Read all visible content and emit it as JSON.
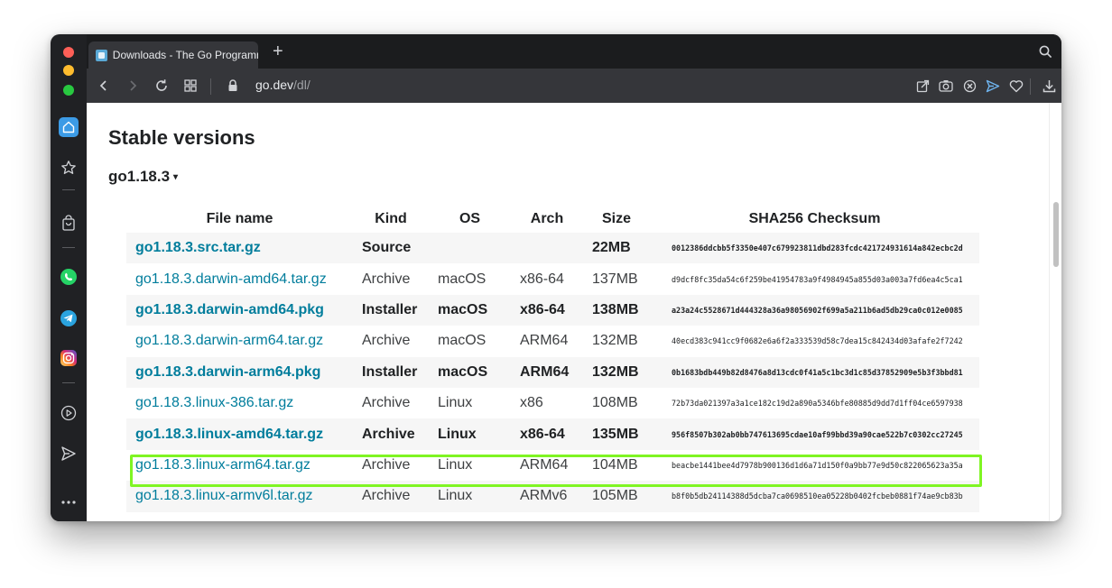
{
  "browser": {
    "tab_title": "Downloads - The Go Programm",
    "new_tab_symbol": "+",
    "url_host": "go.dev",
    "url_path": "/dl/"
  },
  "page": {
    "stable_heading": "Stable versions",
    "version_heading": "go1.18.3",
    "version_caret": "▾"
  },
  "table": {
    "headers": [
      "File name",
      "Kind",
      "OS",
      "Arch",
      "Size",
      "SHA256 Checksum"
    ],
    "rows": [
      {
        "file": "go1.18.3.src.tar.gz",
        "kind": "Source",
        "os": "",
        "arch": "",
        "size": "22MB",
        "sha": "0012386ddcbb5f3350e407c679923811dbd283fcdc421724931614a842ecbc2d"
      },
      {
        "file": "go1.18.3.darwin-amd64.tar.gz",
        "kind": "Archive",
        "os": "macOS",
        "arch": "x86-64",
        "size": "137MB",
        "sha": "d9dcf8fc35da54c6f259be41954783a9f4984945a855d03a003a7fd6ea4c5ca1"
      },
      {
        "file": "go1.18.3.darwin-amd64.pkg",
        "kind": "Installer",
        "os": "macOS",
        "arch": "x86-64",
        "size": "138MB",
        "sha": "a23a24c5528671d444328a36a98056902f699a5a211b6ad5db29ca0c012e0085"
      },
      {
        "file": "go1.18.3.darwin-arm64.tar.gz",
        "kind": "Archive",
        "os": "macOS",
        "arch": "ARM64",
        "size": "132MB",
        "sha": "40ecd383c941cc9f0682e6a6f2a333539d58c7dea15c842434d03afafe2f7242"
      },
      {
        "file": "go1.18.3.darwin-arm64.pkg",
        "kind": "Installer",
        "os": "macOS",
        "arch": "ARM64",
        "size": "132MB",
        "sha": "0b1683bdb449b82d8476a8d13cdc0f41a5c1bc3d1c85d37852909e5b3f3bbd81"
      },
      {
        "file": "go1.18.3.linux-386.tar.gz",
        "kind": "Archive",
        "os": "Linux",
        "arch": "x86",
        "size": "108MB",
        "sha": "72b73da021397a3a1ce182c19d2a890a5346bfe80885d9dd7d1ff04ce6597938"
      },
      {
        "file": "go1.18.3.linux-amd64.tar.gz",
        "kind": "Archive",
        "os": "Linux",
        "arch": "x86-64",
        "size": "135MB",
        "sha": "956f8507b302ab0bb747613695cdae10af99bbd39a90cae522b7c0302cc27245"
      },
      {
        "file": "go1.18.3.linux-arm64.tar.gz",
        "kind": "Archive",
        "os": "Linux",
        "arch": "ARM64",
        "size": "104MB",
        "sha": "beacbe1441bee4d7978b900136d1d6a71d150f0a9bb77e9d50c822065623a35a"
      },
      {
        "file": "go1.18.3.linux-armv6l.tar.gz",
        "kind": "Archive",
        "os": "Linux",
        "arch": "ARMv6",
        "size": "105MB",
        "sha": "b8f0b5db24114388d5dcba7ca0698510ea05228b0402fcbeb0881f74ae9cb83b"
      }
    ],
    "featured_rows": [
      0,
      2,
      4,
      6
    ],
    "highlighted_row": 6
  },
  "colors": {
    "link": "#007d9c",
    "highlight": "#7ff523",
    "window_chrome": "#202124",
    "toolbar": "#35363a"
  },
  "icons": {
    "sidebar": [
      "speed-dial-icon",
      "bookmarks-icon",
      "shopping-bag-icon",
      "whatsapp-icon",
      "telegram-icon",
      "instagram-icon",
      "player-icon",
      "flow-send-icon",
      "more-icon"
    ],
    "toolbar": [
      "back-icon",
      "forward-icon",
      "reload-icon",
      "tabs-grid-icon",
      "lock-icon",
      "share-icon",
      "camera-icon",
      "adblock-icon",
      "send-icon",
      "heart-icon",
      "download-icon",
      "settings-icon"
    ]
  }
}
